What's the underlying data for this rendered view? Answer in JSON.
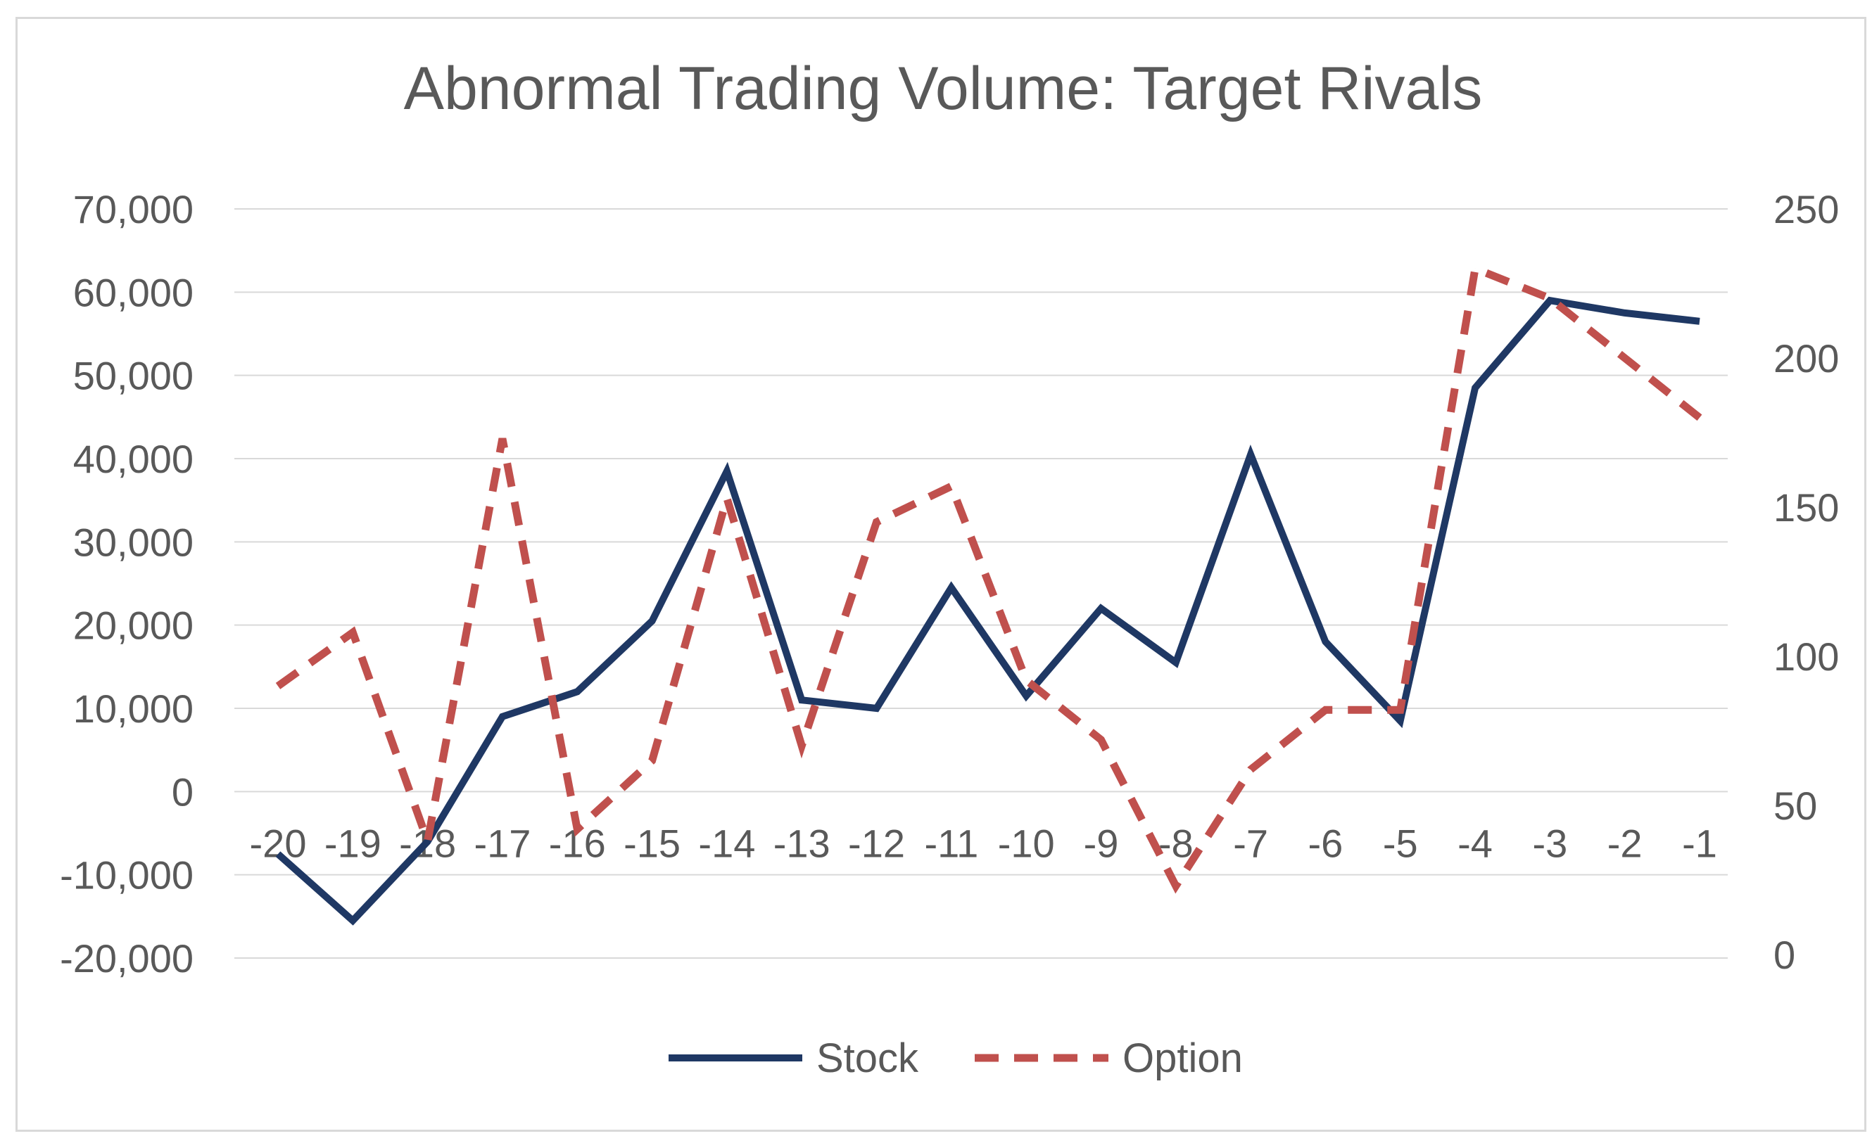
{
  "chart_data": {
    "type": "line",
    "title": "Abnormal Trading Volume: Target Rivals",
    "xlabel": "",
    "ylabel": "",
    "y2label": "",
    "categories": [
      "-20",
      "-19",
      "-18",
      "-17",
      "-16",
      "-15",
      "-14",
      "-13",
      "-12",
      "-11",
      "-10",
      "-9",
      "-8",
      "-7",
      "-6",
      "-5",
      "-4",
      "-3",
      "-2",
      "-1"
    ],
    "y_ticks": [
      "70,000",
      "60,000",
      "50,000",
      "40,000",
      "30,000",
      "20,000",
      "10,000",
      "0",
      "-10,000",
      "-20,000"
    ],
    "y2_ticks": [
      "250",
      "200",
      "150",
      "100",
      "50",
      "0"
    ],
    "ylim": [
      -20000,
      70000
    ],
    "y2lim": [
      0,
      250
    ],
    "grid": true,
    "legend_position": "bottom",
    "series": [
      {
        "name": "Stock",
        "axis": "left",
        "style": "solid",
        "color": "#1f3864",
        "values": [
          -7500,
          -15500,
          -6000,
          9000,
          12000,
          20500,
          38500,
          11000,
          10000,
          24500,
          11500,
          22000,
          15500,
          40500,
          18000,
          8500,
          48500,
          59000,
          57500,
          56500
        ]
      },
      {
        "name": "Option",
        "axis": "right",
        "style": "dashed",
        "color": "#c0504d",
        "values": [
          90,
          108,
          38,
          173,
          42,
          65,
          153,
          70,
          145,
          157,
          92,
          72,
          23,
          62,
          82,
          82,
          230,
          220,
          200,
          180
        ]
      }
    ]
  }
}
